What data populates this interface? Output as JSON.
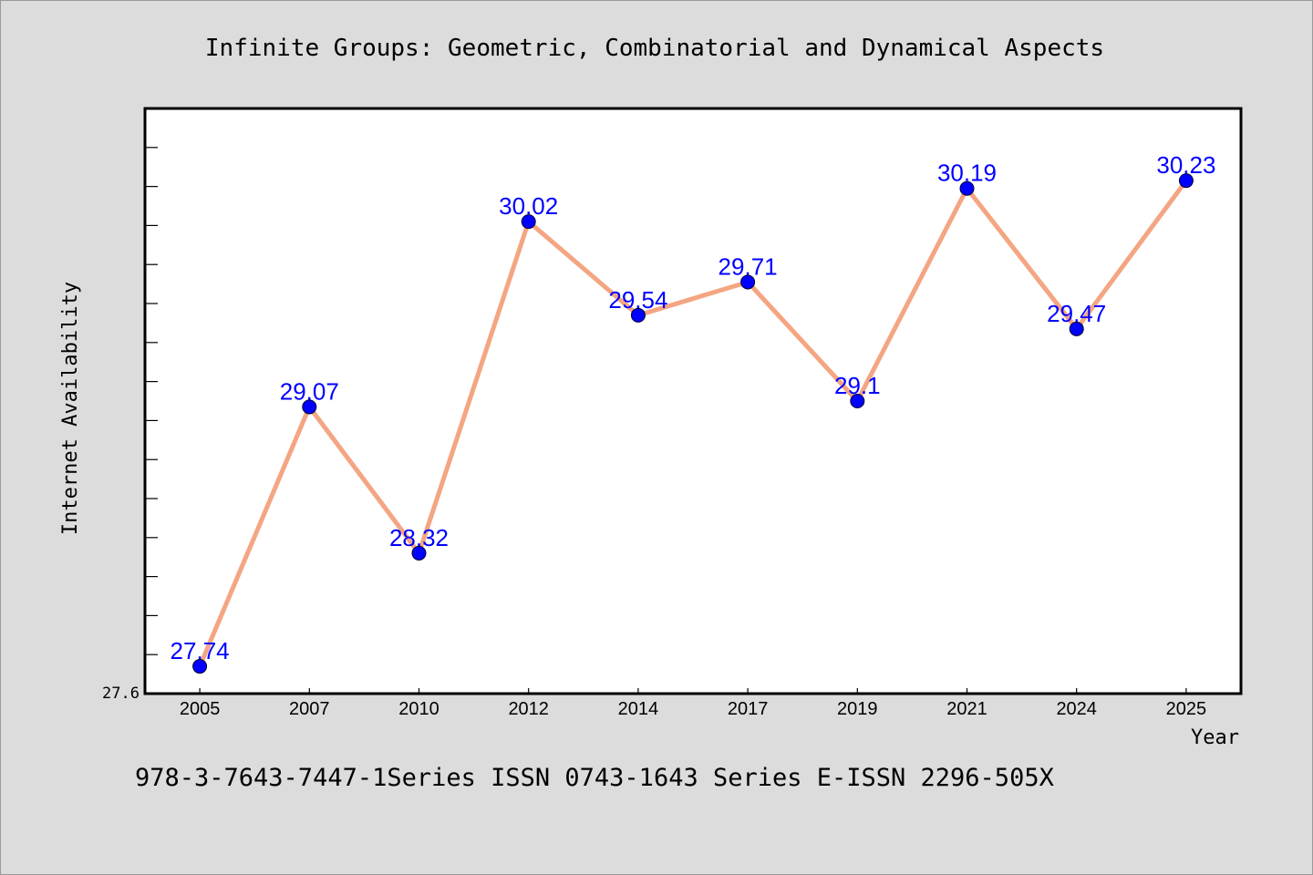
{
  "chart_data": {
    "type": "line",
    "title": "Infinite Groups: Geometric, Combinatorial and Dynamical Aspects",
    "xlabel": "Year",
    "ylabel": "Internet Availability",
    "categories": [
      "2005",
      "2007",
      "2010",
      "2012",
      "2014",
      "2017",
      "2019",
      "2021",
      "2024",
      "2025"
    ],
    "values": [
      27.74,
      29.07,
      28.32,
      30.02,
      29.54,
      29.71,
      29.1,
      30.19,
      29.47,
      30.23
    ],
    "value_labels": [
      "27.74",
      "29.07",
      "28.32",
      "30.02",
      "29.54",
      "29.71",
      "29.1",
      "30.19",
      "29.47",
      "30.23"
    ],
    "y_tick_labels": [
      "27.6"
    ],
    "ylim": [
      27.6,
      30.6
    ],
    "grid": false,
    "line_color": "#f4a582",
    "marker_color": "#0000ff",
    "label_color": "#0000ff"
  },
  "footer": {
    "text": "978-3-7643-7447-1Series ISSN 0743-1643 Series E-ISSN 2296-505X"
  }
}
